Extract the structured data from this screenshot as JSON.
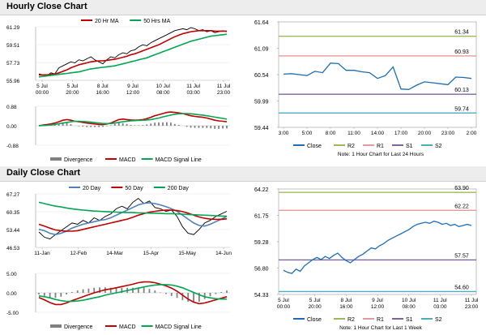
{
  "sections": {
    "hourly_title": "Hourly Close Chart",
    "daily_title": "Daily Close Chart"
  },
  "colors": {
    "price": "#000000",
    "ma_red": "#c00000",
    "ma_green": "#00a651",
    "ma_blue": "#4f81bd",
    "close_line": "#1f6eb5",
    "r2": "#9bbb59",
    "r1": "#e59a9a",
    "s1": "#8064a2",
    "s2": "#4bacc6",
    "divergence": "#808080"
  },
  "chart_data": [
    {
      "type": "line",
      "panel": "hourly-price",
      "yticks": [
        "61.29",
        "59.51",
        "57.73",
        "55.96"
      ],
      "ylim": [
        55.96,
        61.29
      ],
      "xticks": [
        "5 Jul\n00:00",
        "5 Jul\n20:00",
        "8 Jul\n16:00",
        "9 Jul\n12:00",
        "10 Jul\n08:00",
        "11 Jul\n03:00",
        "11 Jul\n23:00"
      ],
      "legend": [
        "20 Hr MA",
        "50 Hrs MA"
      ],
      "series": [
        {
          "name": "Close",
          "values": [
            56.6,
            56.5,
            56.4,
            56.7,
            56.6,
            57.2,
            57.4,
            57.6,
            57.8,
            57.7,
            58.0,
            57.9,
            58.1,
            58.3,
            58.0,
            57.8,
            57.6,
            58.0,
            58.3,
            58.2,
            58.5,
            58.7,
            58.6,
            58.9,
            59.0,
            59.3,
            59.5,
            59.4,
            59.7,
            59.9,
            60.1,
            60.3,
            60.5,
            60.7,
            60.9,
            61.0,
            61.1,
            61.0,
            61.2,
            61.1,
            60.9,
            61.0,
            60.8,
            60.9,
            60.7,
            60.8,
            60.9,
            60.8
          ]
        },
        {
          "name": "20 Hr MA",
          "values": [
            56.5,
            56.5,
            56.5,
            56.55,
            56.6,
            56.7,
            56.85,
            57.0,
            57.2,
            57.35,
            57.5,
            57.6,
            57.7,
            57.8,
            57.85,
            57.9,
            57.9,
            57.95,
            58.0,
            58.05,
            58.15,
            58.25,
            58.35,
            58.5,
            58.6,
            58.75,
            58.9,
            59.05,
            59.2,
            59.35,
            59.5,
            59.7,
            59.9,
            60.1,
            60.3,
            60.45,
            60.6,
            60.7,
            60.8,
            60.85,
            60.9,
            60.9,
            60.9,
            60.9,
            60.85,
            60.85,
            60.85,
            60.85
          ]
        },
        {
          "name": "50 Hrs MA",
          "values": [
            56.3,
            56.35,
            56.4,
            56.45,
            56.5,
            56.55,
            56.6,
            56.65,
            56.7,
            56.75,
            56.8,
            56.9,
            57.0,
            57.1,
            57.15,
            57.2,
            57.25,
            57.3,
            57.35,
            57.4,
            57.5,
            57.6,
            57.7,
            57.8,
            57.9,
            58.0,
            58.1,
            58.2,
            58.35,
            58.5,
            58.65,
            58.8,
            58.95,
            59.1,
            59.25,
            59.4,
            59.55,
            59.7,
            59.85,
            59.95,
            60.05,
            60.15,
            60.25,
            60.35,
            60.4,
            60.45,
            60.5,
            60.55
          ]
        }
      ]
    },
    {
      "type": "line",
      "panel": "hourly-macd",
      "yticks": [
        "0.88",
        "0.00",
        "-0.88"
      ],
      "ylim": [
        -0.88,
        0.88
      ],
      "legend": [
        "Divergence",
        "MACD",
        "MACD Signal Line"
      ],
      "series": [
        {
          "name": "MACD",
          "values": [
            0.0,
            0.03,
            0.05,
            0.08,
            0.12,
            0.18,
            0.25,
            0.28,
            0.25,
            0.2,
            0.18,
            0.15,
            0.12,
            0.1,
            0.08,
            0.06,
            0.05,
            0.08,
            0.12,
            0.2,
            0.28,
            0.3,
            0.28,
            0.26,
            0.25,
            0.26,
            0.28,
            0.32,
            0.38,
            0.45,
            0.5,
            0.55,
            0.6,
            0.62,
            0.6,
            0.58,
            0.55,
            0.5,
            0.45,
            0.42,
            0.4,
            0.38,
            0.35,
            0.3,
            0.25,
            0.22,
            0.2,
            0.18
          ]
        },
        {
          "name": "MACD Signal Line",
          "values": [
            0.0,
            0.01,
            0.02,
            0.04,
            0.06,
            0.09,
            0.12,
            0.15,
            0.18,
            0.2,
            0.2,
            0.19,
            0.18,
            0.16,
            0.14,
            0.12,
            0.1,
            0.1,
            0.1,
            0.12,
            0.15,
            0.18,
            0.2,
            0.22,
            0.23,
            0.24,
            0.25,
            0.26,
            0.28,
            0.31,
            0.35,
            0.4,
            0.44,
            0.48,
            0.52,
            0.54,
            0.55,
            0.55,
            0.54,
            0.52,
            0.5,
            0.48,
            0.45,
            0.42,
            0.39,
            0.36,
            0.33,
            0.3
          ]
        },
        {
          "name": "Divergence",
          "values": [
            0.0,
            0.02,
            0.03,
            0.04,
            0.06,
            0.09,
            0.13,
            0.13,
            0.07,
            0.0,
            -0.02,
            -0.04,
            -0.06,
            -0.06,
            -0.06,
            -0.06,
            -0.05,
            -0.02,
            0.02,
            0.08,
            0.13,
            0.12,
            0.08,
            0.04,
            0.02,
            0.02,
            0.03,
            0.06,
            0.1,
            0.14,
            0.15,
            0.15,
            0.16,
            0.14,
            0.08,
            0.04,
            0.0,
            -0.05,
            -0.09,
            -0.1,
            -0.1,
            -0.1,
            -0.1,
            -0.12,
            -0.14,
            -0.14,
            -0.13,
            -0.12
          ]
        }
      ]
    },
    {
      "type": "line",
      "panel": "hourly-pivot",
      "yticks": [
        "61.64",
        "61.09",
        "60.54",
        "59.99",
        "59.44"
      ],
      "ylim": [
        59.44,
        61.64
      ],
      "xticks": [
        "3:00",
        "5:00",
        "8:00",
        "11:00",
        "14:00",
        "17:00",
        "20:00",
        "23:00",
        "2:00"
      ],
      "levels": [
        {
          "name": "R2",
          "value": 61.34,
          "label": "61.34"
        },
        {
          "name": "R1",
          "value": 60.93,
          "label": "60.93"
        },
        {
          "name": "S1",
          "value": 60.13,
          "label": "60.13"
        },
        {
          "name": "S2",
          "value": 59.74,
          "label": "59.74"
        }
      ],
      "legend": [
        "Close",
        "R2",
        "R1",
        "S1",
        "S2"
      ],
      "note": "Note: 1 Hour Chart for Last 24 Hours",
      "series": [
        {
          "name": "Close",
          "values": [
            60.55,
            60.56,
            60.54,
            60.52,
            60.61,
            60.58,
            60.78,
            60.77,
            60.63,
            60.63,
            60.6,
            60.58,
            60.46,
            60.52,
            60.7,
            60.24,
            60.23,
            60.32,
            60.39,
            60.37,
            60.35,
            60.33,
            60.49,
            60.48,
            60.46
          ]
        }
      ]
    },
    {
      "type": "line",
      "panel": "daily-price",
      "yticks": [
        "67.27",
        "60.35",
        "53.44",
        "46.53"
      ],
      "ylim": [
        46.53,
        67.27
      ],
      "xticks": [
        "11-Jan",
        "12-Feb",
        "14-Mar",
        "15-Apr",
        "15-May",
        "14-Jun"
      ],
      "legend": [
        "20 Day",
        "50 Day",
        "200 Day"
      ],
      "series": [
        {
          "name": "Close",
          "values": [
            52.5,
            50.5,
            49.8,
            51.5,
            53.0,
            54.5,
            56.0,
            55.5,
            57.0,
            56.0,
            58.0,
            57.0,
            58.5,
            59.5,
            61.5,
            62.5,
            61.5,
            64.0,
            65.5,
            63.5,
            64.5,
            62.0,
            61.5,
            60.5,
            61.0,
            58.5,
            54.5,
            52.0,
            51.5,
            53.5,
            56.0,
            57.0,
            58.5,
            59.5,
            60.5
          ]
        },
        {
          "name": "20 Day",
          "values": [
            53.5,
            53.0,
            52.0,
            51.5,
            52.0,
            52.8,
            54.0,
            54.8,
            55.5,
            56.0,
            56.5,
            57.0,
            57.3,
            58.0,
            59.0,
            60.0,
            61.0,
            62.0,
            63.0,
            63.6,
            63.8,
            63.5,
            63.0,
            62.3,
            61.5,
            60.5,
            59.0,
            57.5,
            56.0,
            55.0,
            54.8,
            55.5,
            56.5,
            57.5,
            58.5
          ]
        },
        {
          "name": "50 Day",
          "values": [
            55.5,
            54.8,
            54.0,
            53.3,
            53.0,
            52.8,
            52.8,
            53.0,
            53.5,
            54.0,
            54.5,
            55.0,
            55.5,
            56.0,
            56.5,
            57.0,
            57.5,
            58.2,
            59.0,
            59.6,
            60.2,
            60.5,
            60.8,
            61.0,
            61.0,
            60.8,
            60.4,
            59.8,
            59.0,
            58.3,
            57.8,
            57.5,
            57.4,
            57.4,
            57.6
          ]
        },
        {
          "name": "200 Day",
          "values": [
            64.0,
            63.5,
            63.0,
            62.5,
            62.2,
            61.8,
            61.5,
            61.2,
            61.0,
            60.8,
            60.6,
            60.5,
            60.4,
            60.3,
            60.2,
            60.1,
            60.0,
            60.0,
            59.9,
            59.9,
            59.8,
            59.8,
            59.7,
            59.6,
            59.6,
            59.5,
            59.4,
            59.3,
            59.2,
            59.1,
            59.0,
            58.9,
            58.8,
            58.7,
            58.6
          ]
        }
      ]
    },
    {
      "type": "line",
      "panel": "daily-macd",
      "yticks": [
        "5.00",
        "0.00",
        "-5.00"
      ],
      "ylim": [
        -5.0,
        5.0
      ],
      "legend": [
        "Divergence",
        "MACD",
        "MACD Signal Line"
      ],
      "series": [
        {
          "name": "MACD",
          "values": [
            -1.2,
            -1.8,
            -2.5,
            -3.0,
            -3.0,
            -2.6,
            -2.0,
            -1.5,
            -1.0,
            -0.5,
            0.0,
            0.4,
            0.8,
            1.0,
            1.3,
            1.6,
            1.9,
            2.2,
            2.6,
            2.8,
            2.8,
            2.6,
            2.2,
            1.8,
            1.2,
            0.4,
            -0.6,
            -1.6,
            -2.4,
            -2.8,
            -2.6,
            -2.2,
            -1.8,
            -1.4,
            -1.0
          ]
        },
        {
          "name": "MACD Signal Line",
          "values": [
            -0.8,
            -1.0,
            -1.3,
            -1.7,
            -2.0,
            -2.2,
            -2.2,
            -2.1,
            -1.9,
            -1.6,
            -1.3,
            -1.0,
            -0.6,
            -0.3,
            0.0,
            0.3,
            0.6,
            0.9,
            1.2,
            1.5,
            1.8,
            2.0,
            2.1,
            2.1,
            2.0,
            1.7,
            1.3,
            0.7,
            0.1,
            -0.5,
            -1.0,
            -1.3,
            -1.5,
            -1.6,
            -1.6
          ]
        },
        {
          "name": "Divergence",
          "values": [
            -0.4,
            -0.8,
            -1.2,
            -1.3,
            -1.0,
            -0.4,
            0.2,
            0.6,
            0.9,
            1.1,
            1.3,
            1.4,
            1.4,
            1.3,
            1.3,
            1.3,
            1.3,
            1.3,
            1.4,
            1.3,
            1.0,
            0.6,
            0.1,
            -0.3,
            -0.8,
            -1.3,
            -1.9,
            -2.3,
            -2.5,
            -2.3,
            -1.6,
            -0.9,
            -0.3,
            0.2,
            0.6
          ]
        }
      ]
    },
    {
      "type": "line",
      "panel": "daily-pivot",
      "yticks": [
        "64.22",
        "61.75",
        "59.28",
        "56.80",
        "54.33"
      ],
      "ylim": [
        54.33,
        64.22
      ],
      "xticks": [
        "5 Jul\n00:00",
        "5 Jul\n20:00",
        "8 Jul\n16:00",
        "9 Jul\n12:00",
        "10 Jul\n08:00",
        "11 Jul\n03:00",
        "11 Jul\n23:00"
      ],
      "levels": [
        {
          "name": "R2",
          "value": 63.9,
          "label": "63.90"
        },
        {
          "name": "R1",
          "value": 62.22,
          "label": "62.22"
        },
        {
          "name": "S1",
          "value": 57.57,
          "label": "57.57"
        },
        {
          "name": "S2",
          "value": 54.6,
          "label": "54.60"
        }
      ],
      "legend": [
        "Close",
        "R2",
        "R1",
        "S1",
        "S2"
      ],
      "note": "Note: 1 Hour Chart for Last 1 Week",
      "series": [
        {
          "name": "Close",
          "values": [
            56.6,
            56.4,
            56.3,
            56.7,
            56.5,
            57.0,
            57.3,
            57.6,
            57.8,
            57.6,
            57.9,
            57.7,
            58.0,
            58.2,
            57.8,
            57.5,
            57.3,
            57.6,
            57.9,
            58.1,
            58.4,
            58.7,
            58.6,
            58.9,
            59.1,
            59.4,
            59.6,
            59.8,
            60.0,
            60.2,
            60.4,
            60.7,
            60.9,
            61.0,
            61.1,
            61.0,
            61.2,
            61.1,
            60.9,
            61.0,
            60.8,
            60.9,
            60.7,
            60.8,
            60.9,
            60.8
          ]
        }
      ]
    }
  ]
}
